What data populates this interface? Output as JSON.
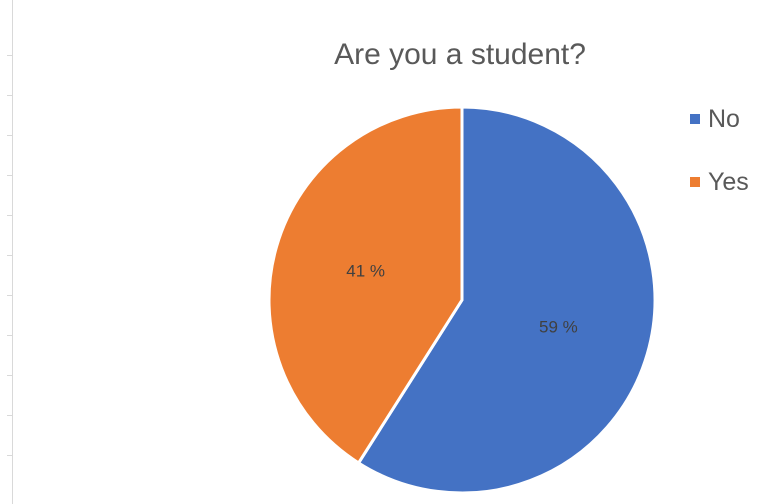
{
  "chart_data": {
    "type": "pie",
    "title": "Are you a student?",
    "categories": [
      "No",
      "Yes"
    ],
    "values": [
      59,
      41
    ],
    "data_labels": [
      "59 %",
      "41 %"
    ],
    "colors": [
      "#4472C4",
      "#ED7D31"
    ],
    "legend": "right"
  }
}
